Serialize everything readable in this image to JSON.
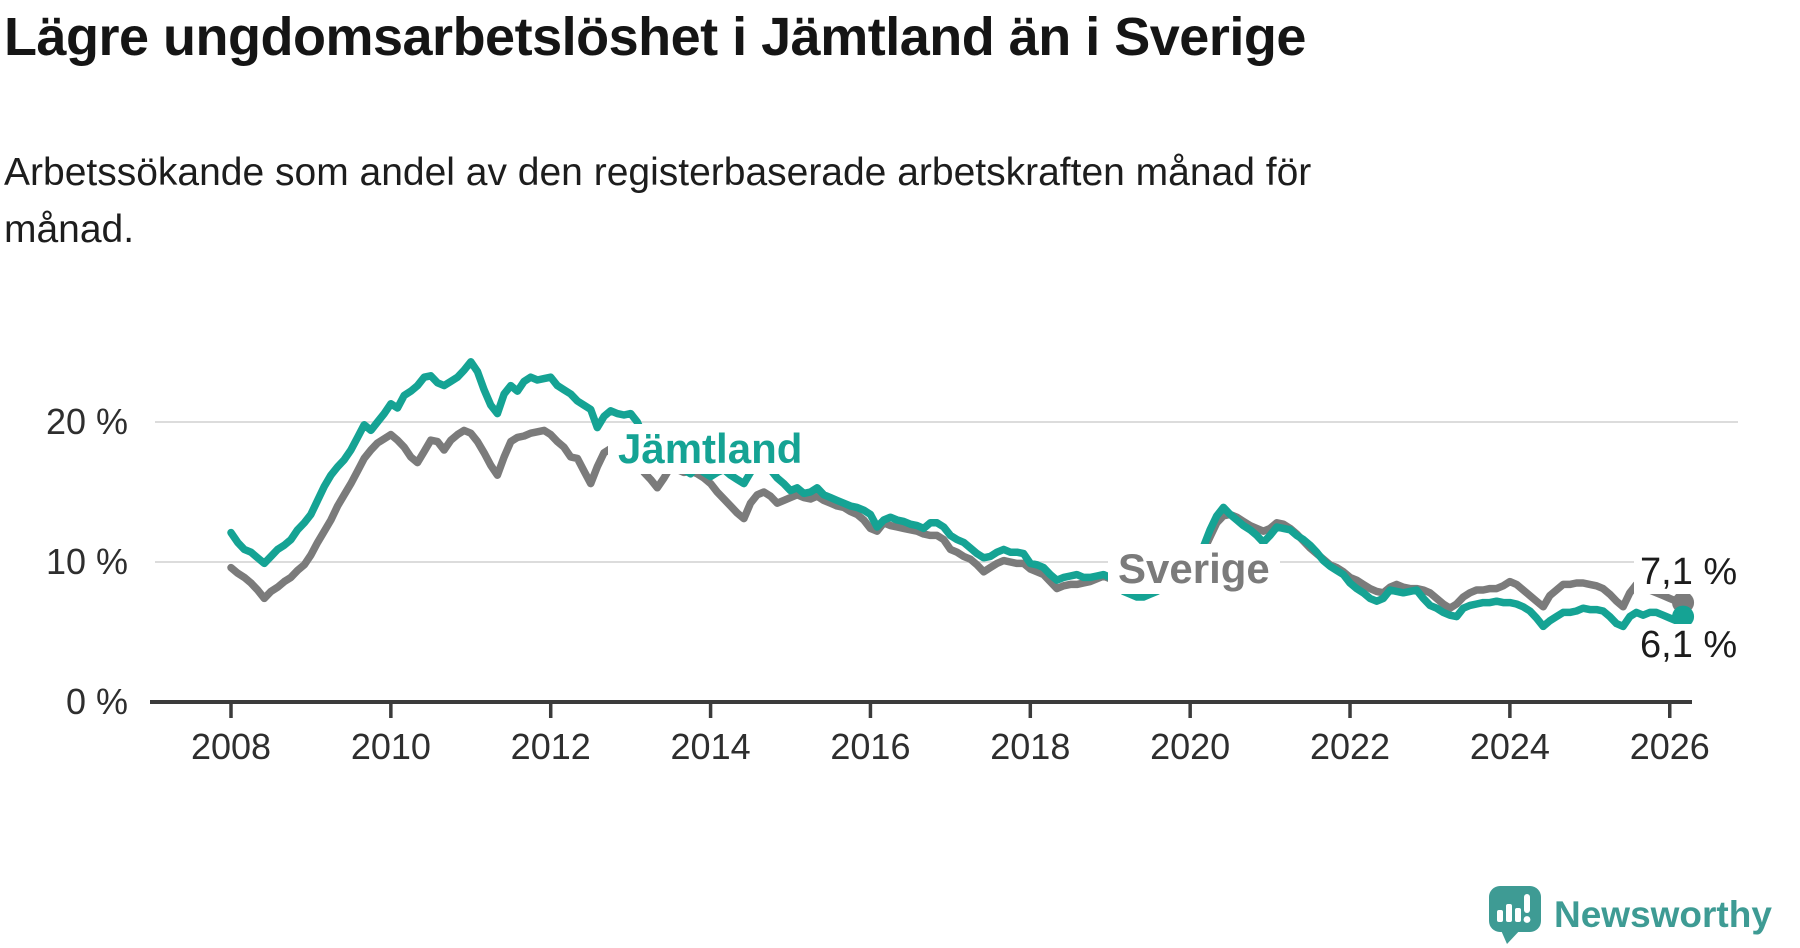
{
  "header": {
    "title": "Lägre ungdomsarbetslöshet i Jämtland än i Sverige",
    "subtitle": "Arbetssökande som andel av den registerbaserade arbetskraften månad för månad."
  },
  "chart_data": {
    "type": "line",
    "title": "Lägre ungdomsarbetslöshet i Jämtland än i Sverige",
    "subtitle": "Arbetssökande som andel av den registerbaserade arbetskraften månad för månad.",
    "grid": "horizontal",
    "x_axis": {
      "tick_years": [
        2008,
        2010,
        2012,
        2014,
        2016,
        2018,
        2020,
        2022,
        2024,
        2026
      ],
      "range": [
        2008,
        2026.25
      ],
      "unit": "year"
    },
    "y_axis": {
      "ticks": [
        {
          "value": 0,
          "label": "0 %"
        },
        {
          "value": 10,
          "label": "10 %"
        },
        {
          "value": 20,
          "label": "20 %"
        }
      ],
      "range": [
        0,
        25
      ],
      "unit": "%"
    },
    "colors": {
      "jamtland": "#15a394",
      "sverige": "#7b7b7b",
      "gridline": "#dcdcdc",
      "axis": "#3b3b3b"
    },
    "series": [
      {
        "name": "sverige",
        "label_text": "Sverige",
        "color": "#7b7b7b",
        "end_label": "7,1 %",
        "end_value": 7.1,
        "start_year": 2008,
        "interval_months": 1,
        "values": [
          9.6,
          9.2,
          8.9,
          8.5,
          8.0,
          7.4,
          7.9,
          8.2,
          8.6,
          8.9,
          9.4,
          9.8,
          10.5,
          11.4,
          12.2,
          13.0,
          14.0,
          14.8,
          15.6,
          16.5,
          17.4,
          18.0,
          18.5,
          18.8,
          19.1,
          18.7,
          18.2,
          17.5,
          17.1,
          17.9,
          18.7,
          18.6,
          18.0,
          18.7,
          19.1,
          19.4,
          19.2,
          18.6,
          17.8,
          16.9,
          16.2,
          17.5,
          18.6,
          18.9,
          19.0,
          19.2,
          19.3,
          19.4,
          19.1,
          18.6,
          18.2,
          17.5,
          17.4,
          16.5,
          15.6,
          16.8,
          17.8,
          18.1,
          18.4,
          18.2,
          17.9,
          17.3,
          16.4,
          15.9,
          15.3,
          16.0,
          16.8,
          16.6,
          16.4,
          16.5,
          16.3,
          16.0,
          15.6,
          15.0,
          14.5,
          14.0,
          13.5,
          13.1,
          14.2,
          14.8,
          15.0,
          14.7,
          14.2,
          14.4,
          14.6,
          14.8,
          14.6,
          14.5,
          14.7,
          14.4,
          14.2,
          14.0,
          13.9,
          13.6,
          13.4,
          13.0,
          12.4,
          12.2,
          12.8,
          12.6,
          12.5,
          12.4,
          12.3,
          12.2,
          12.0,
          11.9,
          11.9,
          11.6,
          10.9,
          10.7,
          10.4,
          10.2,
          9.8,
          9.3,
          9.6,
          9.9,
          10.1,
          10.0,
          9.9,
          9.9,
          9.5,
          9.3,
          9.1,
          8.6,
          8.1,
          8.3,
          8.4,
          8.4,
          8.5,
          8.6,
          8.8,
          9.0,
          8.8,
          8.6,
          8.4,
          8.2,
          8.1,
          8.0,
          8.0,
          8.2,
          8.5,
          8.8,
          9.2,
          9.8,
          10.2,
          10.5,
          10.8,
          11.8,
          12.8,
          13.3,
          13.4,
          13.2,
          12.9,
          12.6,
          12.4,
          12.2,
          12.4,
          12.8,
          12.7,
          12.4,
          12.0,
          11.5,
          11.0,
          10.6,
          10.2,
          9.8,
          9.6,
          9.3,
          8.9,
          8.7,
          8.4,
          8.1,
          7.9,
          7.8,
          8.2,
          8.4,
          8.2,
          8.1,
          8.1,
          8.0,
          7.8,
          7.4,
          7.0,
          6.7,
          7.0,
          7.5,
          7.8,
          8.0,
          8.0,
          8.1,
          8.1,
          8.3,
          8.6,
          8.4,
          8.0,
          7.6,
          7.2,
          6.8,
          7.6,
          8.0,
          8.4,
          8.4,
          8.5,
          8.5,
          8.4,
          8.3,
          8.1,
          7.7,
          7.2,
          6.8,
          7.8,
          8.4,
          8.3,
          8.0,
          7.8,
          7.6,
          7.4,
          7.2,
          7.1
        ]
      },
      {
        "name": "jamtland",
        "label_text": "Jämtland",
        "color": "#15a394",
        "end_label": "6,1 %",
        "end_value": 6.1,
        "start_year": 2008,
        "interval_months": 1,
        "values": [
          12.1,
          11.4,
          10.9,
          10.7,
          10.3,
          9.9,
          10.4,
          10.9,
          11.2,
          11.6,
          12.3,
          12.8,
          13.4,
          14.4,
          15.4,
          16.2,
          16.8,
          17.3,
          18.0,
          18.9,
          19.8,
          19.4,
          20.0,
          20.6,
          21.3,
          21.0,
          21.9,
          22.2,
          22.6,
          23.2,
          23.3,
          22.8,
          22.6,
          22.9,
          23.2,
          23.7,
          24.3,
          23.6,
          22.3,
          21.2,
          20.6,
          22.0,
          22.6,
          22.2,
          22.9,
          23.2,
          23.0,
          23.1,
          23.2,
          22.6,
          22.3,
          22.0,
          21.5,
          21.2,
          20.9,
          19.6,
          20.4,
          20.8,
          20.6,
          20.5,
          20.6,
          20.0,
          18.9,
          18.4,
          17.5,
          17.0,
          17.3,
          17.8,
          16.6,
          16.3,
          16.8,
          16.4,
          16.1,
          16.4,
          16.6,
          16.2,
          15.9,
          15.6,
          16.4,
          17.0,
          17.3,
          16.6,
          16.0,
          15.6,
          15.1,
          15.3,
          14.9,
          15.0,
          15.3,
          14.8,
          14.6,
          14.4,
          14.2,
          14.0,
          13.9,
          13.7,
          13.4,
          12.5,
          13.0,
          13.2,
          13.0,
          12.9,
          12.7,
          12.6,
          12.4,
          12.8,
          12.8,
          12.5,
          11.9,
          11.6,
          11.4,
          11.0,
          10.6,
          10.3,
          10.4,
          10.7,
          10.9,
          10.7,
          10.7,
          10.6,
          9.9,
          9.8,
          9.6,
          9.1,
          8.7,
          8.9,
          9.0,
          9.1,
          8.9,
          8.9,
          9.0,
          9.1,
          8.9,
          8.5,
          7.9,
          7.7,
          7.5,
          7.5,
          7.7,
          7.9,
          8.2,
          8.6,
          9.0,
          9.6,
          10.4,
          10.8,
          11.1,
          12.3,
          13.3,
          13.9,
          13.4,
          13.0,
          12.6,
          12.3,
          11.9,
          11.4,
          11.9,
          12.5,
          12.4,
          12.3,
          11.9,
          11.6,
          11.2,
          10.7,
          10.1,
          9.7,
          9.4,
          9.1,
          8.5,
          8.1,
          7.8,
          7.4,
          7.2,
          7.4,
          8.0,
          7.9,
          7.8,
          7.9,
          8.0,
          7.4,
          6.9,
          6.7,
          6.4,
          6.2,
          6.1,
          6.7,
          6.9,
          7.0,
          7.1,
          7.1,
          7.2,
          7.1,
          7.1,
          7.0,
          6.8,
          6.5,
          6.0,
          5.4,
          5.8,
          6.1,
          6.4,
          6.4,
          6.5,
          6.7,
          6.6,
          6.6,
          6.5,
          6.1,
          5.6,
          5.4,
          6.1,
          6.4,
          6.2,
          6.4,
          6.4,
          6.2,
          6.0,
          5.8,
          6.1
        ]
      }
    ]
  },
  "footer": {
    "brand": "Newsworthy",
    "brand_color": "#3e9b94"
  }
}
